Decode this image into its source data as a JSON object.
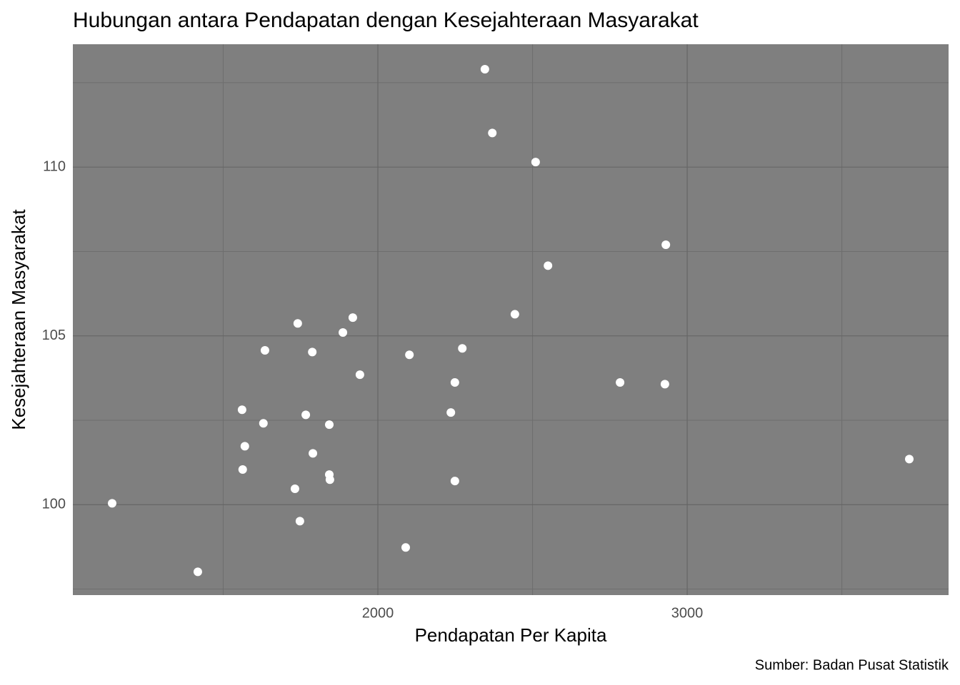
{
  "chart_data": {
    "type": "scatter",
    "title": "Hubungan antara Pendapatan dengan Kesejahteraan Masyarakat",
    "x_label": "Pendapatan Per Kapita",
    "y_label": "Kesejahteraan Masyarakat",
    "caption": "Sumber: Badan Pusat Statistik",
    "x": [
      2346,
      2370,
      2510,
      2931,
      2550,
      2443,
      1919,
      1741,
      1887,
      1635,
      1788,
      2273,
      2102,
      1942,
      2249,
      2783,
      2928,
      1561,
      2236,
      1767,
      1630,
      1843,
      1570,
      1790,
      3718,
      1563,
      1843,
      1845,
      2249,
      1732,
      1141,
      1748,
      2090,
      1418
    ],
    "values": [
      112.9,
      111.01,
      110.15,
      107.7,
      107.08,
      105.64,
      105.54,
      105.37,
      105.1,
      104.57,
      104.52,
      104.63,
      104.44,
      103.85,
      103.62,
      103.62,
      103.57,
      102.81,
      102.73,
      102.66,
      102.41,
      102.37,
      101.73,
      101.52,
      101.35,
      101.04,
      100.89,
      100.74,
      100.7,
      100.47,
      100.04,
      99.51,
      98.73,
      98.01
    ],
    "color": "#ffffff",
    "xlim": [
      1014,
      3845
    ],
    "ylim": [
      97.32,
      113.64
    ],
    "xticks": [
      2000,
      3000
    ],
    "yticks": [
      100,
      105,
      110
    ],
    "x_minor_grid": [
      1500,
      2500,
      3500
    ],
    "y_minor_grid": [
      97.5,
      102.5,
      107.5,
      112.5
    ],
    "grid": true,
    "panel_color": "#7f7f7f"
  }
}
